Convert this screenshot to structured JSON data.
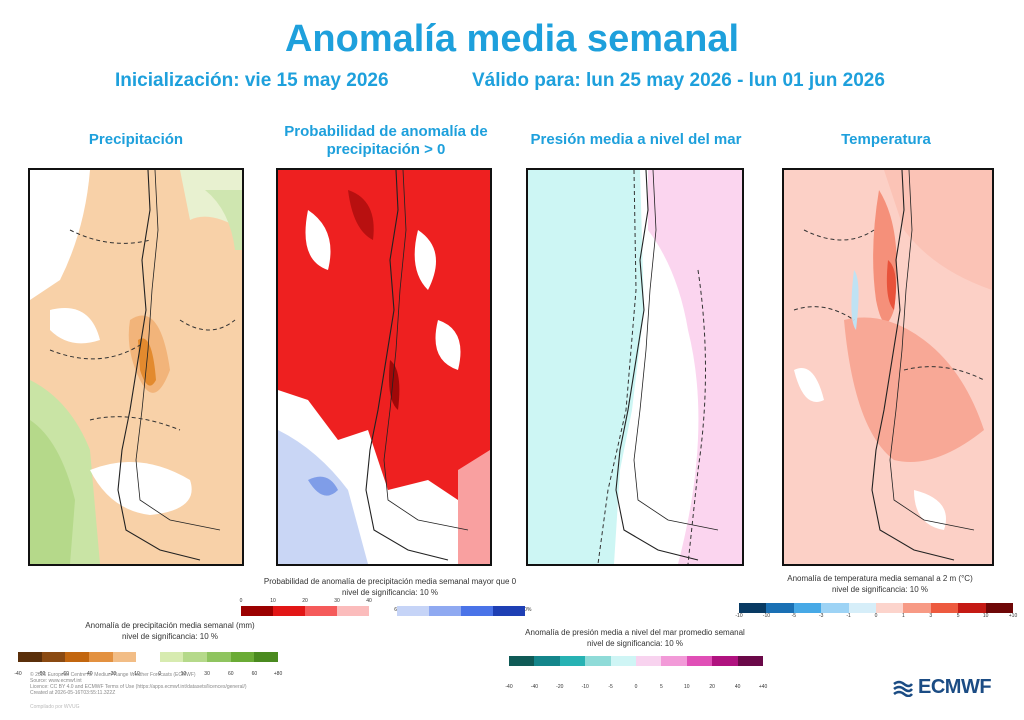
{
  "header": {
    "title": "Anomalía media semanal",
    "init": "Inicialización: vie 15 may 2026",
    "valid": "Válido para: lun 25 may 2026 - lun 01 jun 2026"
  },
  "panels": [
    {
      "title": "Precipitación"
    },
    {
      "title": "Probabilidad de anomalía de precipitación > 0"
    },
    {
      "title": "Presión media a nivel del mar"
    },
    {
      "title": "Temperatura"
    }
  ],
  "legends": {
    "precip": {
      "title": "Anomalía de precipitación media semanal (mm)",
      "sig": "nivel de significancia: 10 %",
      "ticks": [
        "-40",
        "-80",
        "-60",
        "-40",
        "-30",
        "-10",
        "0",
        "10",
        "30",
        "60",
        "60",
        "+80"
      ],
      "colors": [
        "#5a2f0a",
        "#8a4a12",
        "#c2660f",
        "#e39140",
        "#f2bd86",
        "#ffffff",
        "#d7ebb0",
        "#b5d98a",
        "#8fc45f",
        "#6aab35",
        "#4a8a1f"
      ]
    },
    "prob": {
      "title": "Probabilidad de anomalía de precipitación media semanal mayor que 0",
      "sig": "nivel de significancia: 10 %",
      "ticks_left": [
        "0",
        "10",
        "20",
        "30",
        "40"
      ],
      "ticks_right": [
        "60",
        "70",
        "80",
        "90",
        "100%"
      ],
      "colors_left": [
        "#9b0000",
        "#e21616",
        "#f55a5a",
        "#fbbcbc"
      ],
      "colors_right": [
        "#c6d4f7",
        "#8fa9f1",
        "#4a73e8",
        "#1e3fb4"
      ]
    },
    "mslp": {
      "title": "Anomalía de presión media a nivel del mar promedio semanal",
      "sig": "nivel de significancia: 10 %",
      "ticks": [
        "-40",
        "-40",
        "-20",
        "-10",
        "-5",
        "0",
        "5",
        "10",
        "20",
        "40",
        "+40"
      ],
      "colors": [
        "#0f5a56",
        "#14858a",
        "#27b2b3",
        "#8fdbd8",
        "#cff5f5",
        "#f8d3ef",
        "#f29ad8",
        "#e04fb6",
        "#b0127f",
        "#6a0848"
      ]
    },
    "temp": {
      "title": "Anomalía de temperatura media semanal a 2 m (°C)",
      "sig": "nivel de significancia: 10 %",
      "ticks": [
        "-10",
        "-10",
        "-5",
        "-3",
        "-1",
        "0",
        "1",
        "3",
        "5",
        "10",
        "+10"
      ],
      "colors": [
        "#083a63",
        "#1a70b4",
        "#47a9e6",
        "#9dd3f5",
        "#d6eef9",
        "#fcd4cc",
        "#f79a85",
        "#ed5a3f",
        "#c41a14",
        "#6e0707"
      ]
    }
  },
  "footer": [
    "© 2026 European Centre for Medium-Range Weather Forecasts (ECMWF)",
    "Source: www.ecmwf.int",
    "Licence: CC BY 4.0 and ECMWF Terms of Use (https://apps.ecmwf.int/datasets/licences/general/)",
    "Created at 2026-05-16T03:55:11.322Z"
  ],
  "credit": "Compilado por WVUG",
  "logo": "ECMWF",
  "colors": {
    "accent": "#1ea0dc",
    "logo": "#1b4c84"
  }
}
